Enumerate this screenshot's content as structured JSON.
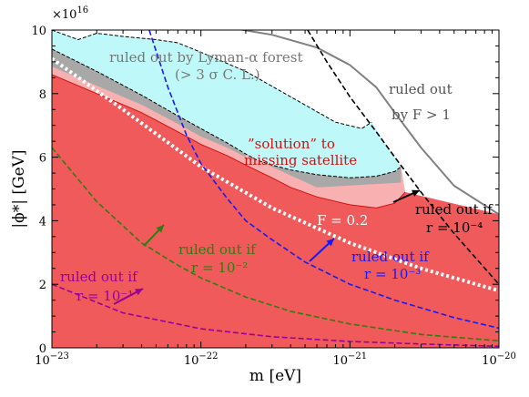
{
  "chart_data": {
    "type": "area",
    "xlabel": "m [eV]",
    "ylabel": "|ϕ*| [GeV]",
    "x_scale": "log",
    "xlim": [
      1e-23,
      1e-20
    ],
    "ylim": [
      0,
      10
    ],
    "y_multiplier_label": "×10",
    "y_multiplier_exp": "16",
    "x_ticks": [
      {
        "value": 1e-23,
        "base": "10",
        "exp": "−23"
      },
      {
        "value": 1e-22,
        "base": "10",
        "exp": "−22"
      },
      {
        "value": 1e-21,
        "base": "10",
        "exp": "−21"
      },
      {
        "value": 1e-20,
        "base": "10",
        "exp": "−20"
      }
    ],
    "y_ticks": [
      0,
      2,
      4,
      6,
      8,
      10
    ],
    "colors": {
      "red": "#f05a5a",
      "red_edge": "#d01010",
      "gray": "#a8a8a8",
      "pink": "#f8b0b0",
      "cyan": "#bff8f8",
      "F1_line": "#808080",
      "F02_line": "#ffffff",
      "r1": "#990099",
      "r2": "#2e7d10",
      "r3": "#1a1aee",
      "r4": "#000000"
    },
    "regions": {
      "ruled_out_red": {
        "x": [
          1e-23,
          2e-23,
          4e-23,
          7e-23,
          1e-22,
          1.5e-22,
          2e-22,
          3e-22,
          4e-22,
          6e-22,
          1e-21,
          1.5e-21,
          2e-21,
          2.35e-21
        ],
        "y": [
          8.6,
          8.0,
          7.4,
          6.8,
          6.4,
          6.05,
          5.75,
          5.35,
          5.05,
          4.75,
          4.5,
          4.4,
          4.55,
          4.9
        ]
      },
      "gray_band_upper": {
        "x": [
          1e-23,
          2e-23,
          4e-23,
          7e-23,
          1e-22,
          1.5e-22,
          2e-22,
          2.4e-22,
          3e-22,
          4e-22,
          6e-22,
          1e-21,
          1.5e-21,
          2e-21,
          2.2e-21
        ],
        "y": [
          9.4,
          8.7,
          7.95,
          7.3,
          6.9,
          6.45,
          6.1,
          5.9,
          5.75,
          5.6,
          5.45,
          5.35,
          5.4,
          5.55,
          5.7
        ]
      },
      "lyman_alpha_edge": {
        "x": [
          1e-23,
          1.5e-23,
          2e-23,
          3e-23,
          5e-23,
          7e-23,
          1e-22,
          2e-22,
          4e-22,
          8e-22,
          1.2e-21,
          1.4e-21
        ],
        "y": [
          10.0,
          9.7,
          9.9,
          9.8,
          9.7,
          9.6,
          9.3,
          8.7,
          7.9,
          7.1,
          6.9,
          7.1
        ]
      },
      "F_gt_1_boundary": {
        "x": [
          1e-23,
          3e-23,
          1e-22,
          3e-22,
          6e-22,
          1e-21,
          1.5e-21,
          2e-21,
          3e-21,
          5e-21,
          1e-20
        ],
        "y": [
          10.62,
          10.45,
          10.22,
          9.85,
          9.45,
          8.9,
          8.2,
          7.4,
          6.3,
          5.1,
          4.2
        ]
      },
      "F_eq_0_2_line": {
        "x": [
          1e-23,
          3e-23,
          1e-22,
          3e-22,
          1e-21,
          3e-21,
          1e-20
        ],
        "y": [
          9.1,
          7.5,
          5.7,
          4.4,
          3.3,
          2.5,
          1.8
        ]
      }
    },
    "series": [
      {
        "name": "r = 10^-1",
        "x": [
          1e-23,
          3e-23,
          1e-22,
          3e-22,
          1e-21,
          3e-21,
          1e-20
        ],
        "y": [
          2.0,
          1.1,
          0.6,
          0.35,
          0.2,
          0.12,
          0.05
        ]
      },
      {
        "name": "r = 10^-2",
        "x": [
          1e-23,
          2e-23,
          4e-23,
          7e-23,
          1e-22,
          2e-22,
          4e-22,
          1e-21,
          3e-21,
          1e-20
        ],
        "y": [
          6.3,
          4.6,
          3.3,
          2.6,
          2.2,
          1.6,
          1.15,
          0.75,
          0.42,
          0.22
        ]
      },
      {
        "name": "r = 10^-3",
        "x": [
          4.5e-23,
          6e-23,
          8e-23,
          1e-22,
          1.5e-22,
          2e-22,
          3e-22,
          5e-22,
          1e-21,
          2e-21,
          5e-21,
          1e-20
        ],
        "y": [
          10.0,
          8.2,
          6.7,
          5.8,
          4.7,
          4.0,
          3.4,
          2.7,
          2.0,
          1.5,
          0.95,
          0.62
        ]
      },
      {
        "name": "r = 10^-4",
        "x": [
          5.2e-22,
          7e-22,
          1e-21,
          1.5e-21,
          2e-21,
          3e-21,
          5e-21,
          1e-20
        ],
        "y": [
          10.0,
          9.0,
          7.9,
          6.8,
          6.0,
          4.9,
          3.6,
          2.0
        ]
      }
    ],
    "annotations": [
      {
        "id": "lyman",
        "lines": [
          "ruled out by Lyman-α forest",
          "(> 3 σ C. L.)"
        ]
      },
      {
        "id": "F1",
        "lines": [
          "ruled out",
          "by F > 1"
        ]
      },
      {
        "id": "solution",
        "lines": [
          "”solution” to",
          "missing satellite"
        ]
      },
      {
        "id": "F02",
        "text": "F = 0.2"
      },
      {
        "id": "r1",
        "lines": [
          "ruled out if",
          "r = 10⁻¹"
        ]
      },
      {
        "id": "r2",
        "lines": [
          "ruled out if",
          "r = 10⁻²"
        ]
      },
      {
        "id": "r3",
        "lines": [
          "ruled out if",
          "r = 10⁻³"
        ]
      },
      {
        "id": "r4",
        "lines": [
          "ruled out if",
          "r = 10⁻⁴"
        ]
      }
    ],
    "grid": false,
    "legend": "none"
  }
}
